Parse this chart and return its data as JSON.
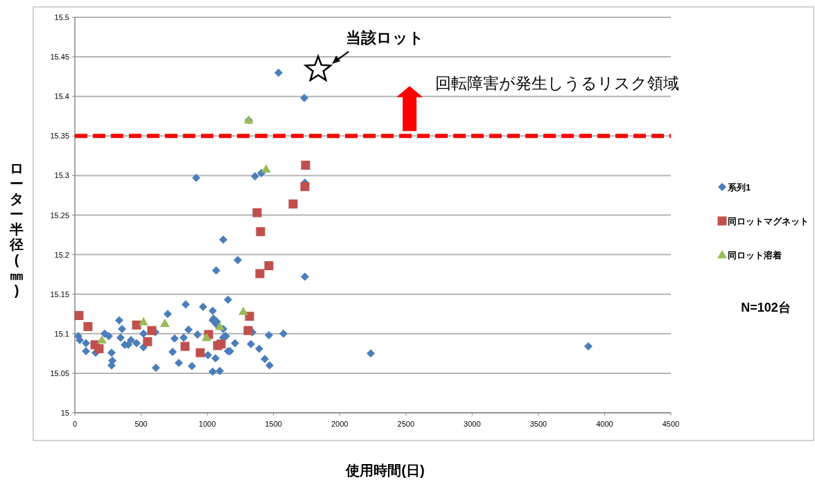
{
  "chart_data": {
    "type": "scatter",
    "xlabel": "使用時間(日)",
    "ylabel": "ローター半径(㎜)",
    "xlim": [
      0,
      4500
    ],
    "xticks": [
      0,
      500,
      1000,
      1500,
      2000,
      2500,
      3000,
      3500,
      4000,
      4500
    ],
    "ylim": [
      15,
      15.5
    ],
    "yticks": [
      15,
      15.05,
      15.1,
      15.15,
      15.2,
      15.25,
      15.3,
      15.35,
      15.4,
      15.45,
      15.5
    ],
    "grid": "y",
    "legend": "right",
    "series": [
      {
        "name": "系列1",
        "color": "#4a7ebb",
        "marker": "diamond",
        "x": [
          26,
          37,
          84,
          84,
          157,
          225,
          256,
          335,
          356,
          345,
          377,
          403,
          424,
          466,
          518,
          518,
          277,
          283,
          277,
          607,
          612,
          701,
          753,
          738,
          785,
          837,
          858,
          822,
          926,
          884,
          968,
          1041,
          1041,
          1067,
          1005,
          1062,
          1041,
          1094,
          1156,
          1141,
          1156,
          1047,
          1073,
          1120,
          1135,
          1120,
          1209,
          1172,
          1329,
          1392,
          1434,
          1470,
          1465,
          1575,
          1340,
          1737,
          916,
          1360,
          1408,
          1120,
          1230,
          1067,
          1737,
          1538,
          1732,
          1313,
          2234,
          3877
        ],
        "values": [
          15.097,
          15.092,
          15.088,
          15.078,
          15.076,
          15.1,
          15.097,
          15.117,
          15.106,
          15.095,
          15.086,
          15.086,
          15.092,
          15.088,
          15.1,
          15.083,
          15.076,
          15.066,
          15.06,
          15.102,
          15.057,
          15.125,
          15.094,
          15.077,
          15.063,
          15.137,
          15.105,
          15.095,
          15.099,
          15.059,
          15.134,
          15.129,
          15.117,
          15.112,
          15.073,
          15.069,
          15.052,
          15.053,
          15.143,
          15.097,
          15.078,
          15.119,
          15.115,
          15.106,
          15.097,
          15.095,
          15.088,
          15.078,
          15.087,
          15.081,
          15.068,
          15.06,
          15.098,
          15.1,
          15.102,
          15.172,
          15.297,
          15.299,
          15.303,
          15.219,
          15.193,
          15.18,
          15.291,
          15.43,
          15.398,
          15.37,
          15.075,
          15.084
        ]
      },
      {
        "name": "同ロットマグネット",
        "color": "#c0504d",
        "marker": "square",
        "x": [
          31,
          99,
          152,
          183,
          466,
          581,
          549,
          832,
          947,
          1010,
          1078,
          1104,
          1319,
          1308,
          1742,
          1737,
          1648,
          1376,
          1402,
          1465,
          1397
        ],
        "values": [
          15.123,
          15.109,
          15.086,
          15.081,
          15.111,
          15.104,
          15.09,
          15.084,
          15.076,
          15.099,
          15.085,
          15.087,
          15.122,
          15.104,
          15.313,
          15.286,
          15.264,
          15.253,
          15.229,
          15.186,
          15.176
        ]
      },
      {
        "name": "同ロット溶着",
        "color": "#9bbb59",
        "marker": "triangle",
        "x": [
          204,
          518,
          680,
          994,
          1094,
          1272,
          1313,
          1444
        ],
        "values": [
          15.092,
          15.115,
          15.113,
          15.095,
          15.109,
          15.128,
          15.37,
          15.308
        ]
      }
    ],
    "ref_lines": [
      {
        "axis": "y",
        "value": 15.35,
        "color": "#ff0000",
        "line_style": "dashed"
      }
    ],
    "annotations": [
      {
        "text": "当該ロット",
        "x": 1837,
        "y": 15.434
      },
      "回転障害が発生しうるリスク領域",
      "N=102台"
    ]
  }
}
